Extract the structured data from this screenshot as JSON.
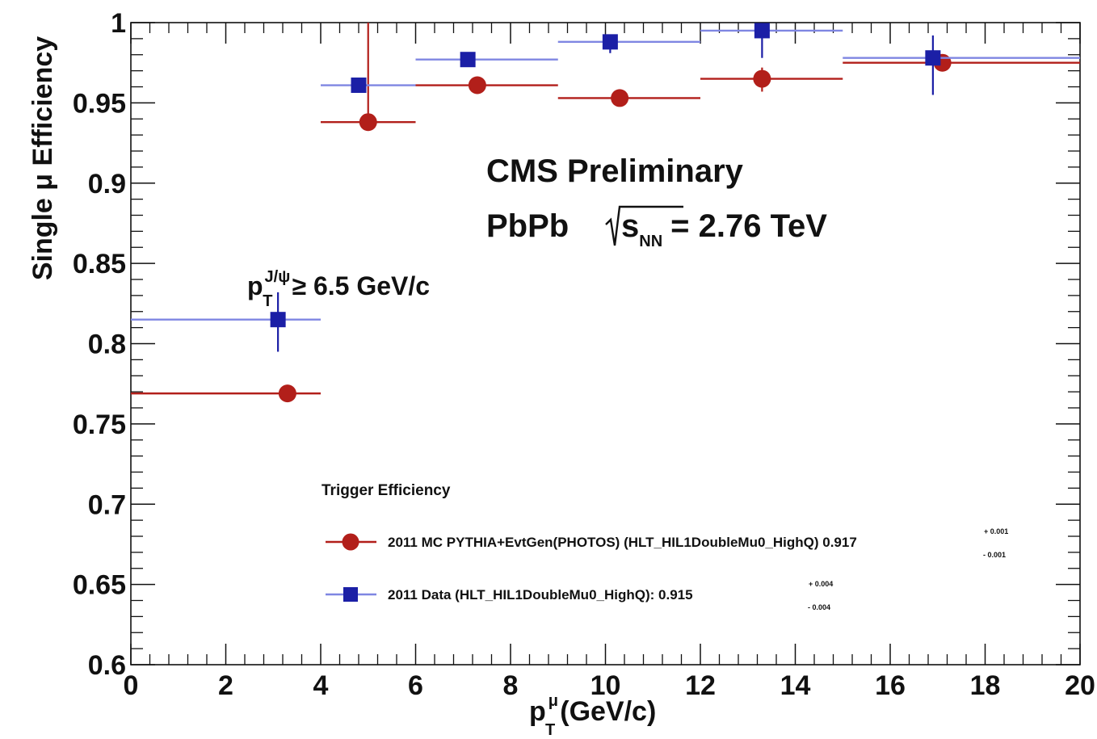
{
  "chart_data": {
    "type": "scatter",
    "xlim": [
      0,
      20
    ],
    "ylim": [
      0.6,
      1.0
    ],
    "x_ticks": [
      "0",
      "2",
      "4",
      "6",
      "8",
      "10",
      "12",
      "14",
      "16",
      "18",
      "20"
    ],
    "y_ticks": [
      "0.6",
      "0.65",
      "0.7",
      "0.75",
      "0.8",
      "0.85",
      "0.9",
      "0.95",
      "1"
    ],
    "xlabel": {
      "main": "p",
      "sup": "μ",
      "sub": "T",
      "unit": "(GeV/c)"
    },
    "ylabel": "Single μ Efficiency",
    "grid": false,
    "series": [
      {
        "name": "2011 MC PYTHIA+EvtGen(PHOTOS) (HLT_HIL1DoubleMu0_HighQ) 0.917",
        "marker": "circle",
        "color": "#b21f1a",
        "points": [
          {
            "x": 3.3,
            "y": 0.769,
            "xlo": 0,
            "xhi": 4,
            "ylo": 0.769,
            "yhi": 0.769
          },
          {
            "x": 5.0,
            "y": 0.938,
            "xlo": 4,
            "xhi": 6,
            "ylo": 0.938,
            "yhi": 1.0
          },
          {
            "x": 7.3,
            "y": 0.961,
            "xlo": 6,
            "xhi": 9,
            "ylo": 0.961,
            "yhi": 0.961
          },
          {
            "x": 10.3,
            "y": 0.953,
            "xlo": 9,
            "xhi": 12,
            "ylo": 0.953,
            "yhi": 0.953
          },
          {
            "x": 13.3,
            "y": 0.965,
            "xlo": 12,
            "xhi": 15,
            "ylo": 0.957,
            "yhi": 0.972
          },
          {
            "x": 17.1,
            "y": 0.975,
            "xlo": 15,
            "xhi": 20,
            "ylo": 0.975,
            "yhi": 0.975
          }
        ]
      },
      {
        "name": "2011 Data (HLT_HIL1DoubleMu0_HighQ): 0.915",
        "marker": "square",
        "color": "#1b1fa6",
        "points": [
          {
            "x": 3.1,
            "y": 0.815,
            "xlo": 0,
            "xhi": 4,
            "ylo": 0.795,
            "yhi": 0.832
          },
          {
            "x": 4.8,
            "y": 0.961,
            "xlo": 4,
            "xhi": 6,
            "ylo": 0.961,
            "yhi": 0.961
          },
          {
            "x": 7.1,
            "y": 0.977,
            "xlo": 6,
            "xhi": 9,
            "ylo": 0.977,
            "yhi": 0.977
          },
          {
            "x": 10.1,
            "y": 0.988,
            "xlo": 9,
            "xhi": 12,
            "ylo": 0.981,
            "yhi": 0.988
          },
          {
            "x": 13.3,
            "y": 0.995,
            "xlo": 12,
            "xhi": 15,
            "ylo": 0.978,
            "yhi": 0.995
          },
          {
            "x": 16.9,
            "y": 0.978,
            "xlo": 15,
            "xhi": 20,
            "ylo": 0.955,
            "yhi": 0.992
          }
        ]
      }
    ],
    "annotations": {
      "cms": "CMS Preliminary",
      "collision": {
        "system": "PbPb",
        "sqrt_s": "s",
        "sqrt_s_sub": "NN",
        "energy": "= 2.76 TeV"
      },
      "cut": {
        "p": "p",
        "sup": "J/ψ",
        "sub": "T",
        "value": "≥ 6.5 GeV/c"
      }
    },
    "legend": {
      "title": "Trigger Efficiency",
      "placement": "lower-center",
      "entries": [
        {
          "label": "2011 MC PYTHIA+EvtGen(PHOTOS) (HLT_HIL1DoubleMu0_HighQ) 0.917",
          "err_plus": "+ 0.001",
          "err_minus": "- 0.001",
          "marker": "circle",
          "color": "#b21f1a"
        },
        {
          "label": "2011 Data (HLT_HIL1DoubleMu0_HighQ): 0.915",
          "err_plus": "+ 0.004",
          "err_minus": "- 0.004",
          "marker": "square",
          "color": "#1b1fa6"
        }
      ]
    },
    "colors": {
      "mc": "#b21f1a",
      "data": "#1b1fa6",
      "data_bar": "#7f86e2",
      "axis": "#111111"
    }
  }
}
